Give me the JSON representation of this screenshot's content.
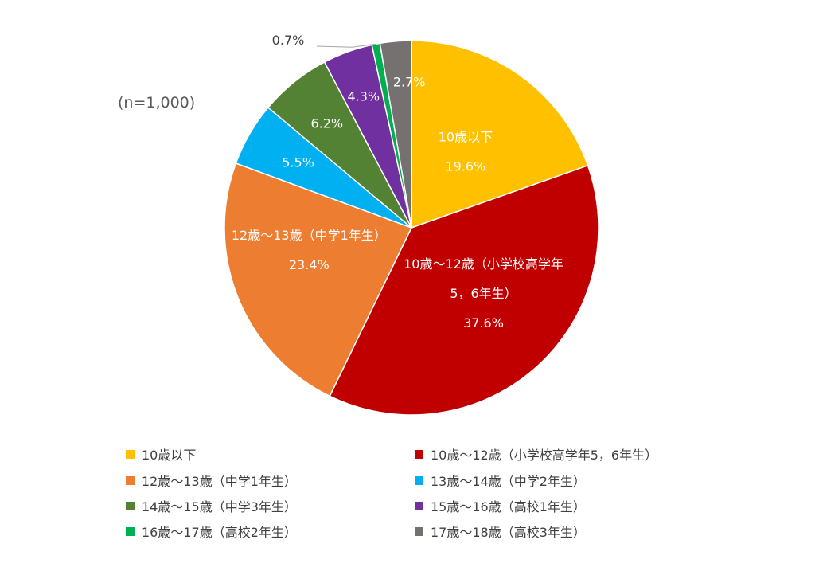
{
  "note": "(n=1,000)",
  "chart_data": {
    "type": "pie",
    "title": "",
    "slices": [
      {
        "name": "10歳以下",
        "value": 19.6,
        "color": "#FFC000",
        "label_lines": [
          "10歳以下",
          "19.6%"
        ]
      },
      {
        "name": "10歳～12歳（小学校高学年5，6年生）",
        "value": 37.6,
        "color": "#C00000",
        "label_lines": [
          "10歳～12歳（小学校高学年",
          "5，6年生）",
          "37.6%"
        ]
      },
      {
        "name": "12歳～13歳（中学1年生）",
        "value": 23.4,
        "color": "#ED7D31",
        "label_lines": [
          "12歳～13歳（中学1年生）",
          "23.4%"
        ]
      },
      {
        "name": "13歳～14歳（中学2年生）",
        "value": 5.5,
        "color": "#00B0F0",
        "label_lines": [
          "5.5%"
        ]
      },
      {
        "name": "14歳～15歳（中学3年生）",
        "value": 6.2,
        "color": "#548235",
        "label_lines": [
          "6.2%"
        ]
      },
      {
        "name": "15歳～16歳（高校1年生）",
        "value": 4.3,
        "color": "#7030A0",
        "label_lines": [
          "4.3%"
        ]
      },
      {
        "name": "16歳～17歳（高校2年生）",
        "value": 0.7,
        "color": "#00B050",
        "label_lines": [
          "0.7%"
        ]
      },
      {
        "name": "17歳～18歳（高校3年生）",
        "value": 2.7,
        "color": "#767171",
        "label_lines": [
          "2.7%"
        ]
      }
    ],
    "legend_position": "bottom"
  }
}
